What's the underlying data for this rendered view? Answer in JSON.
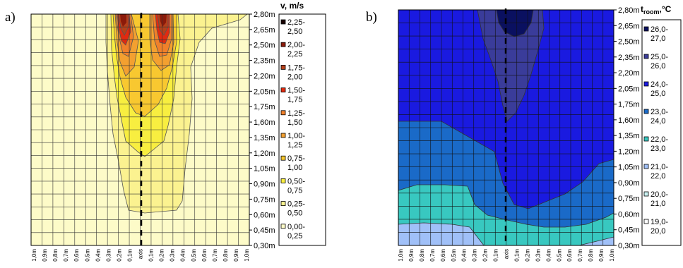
{
  "chart_data": [
    {
      "type": "contour",
      "panel_label": "a)",
      "legend_title": "v, m/s",
      "y_ticks": [
        "2,80m",
        "2,65m",
        "2,50m",
        "2,35m",
        "2,20m",
        "2,05m",
        "1,75m",
        "1,60m",
        "1,35m",
        "1,20m",
        "1,05m",
        "0,90m",
        "0,75m",
        "0,60m",
        "0,45m",
        "0,30m"
      ],
      "x_ticks": [
        "1,0m",
        "0,9m",
        "0,8m",
        "0,7m",
        "0,6m",
        "0,5m",
        "0,4m",
        "0,3m",
        "0,2m",
        "0,1m",
        "axis",
        "0,1m",
        "0,2m",
        "0,3m",
        "0,4m",
        "0,5m",
        "0,6m",
        "0,7m",
        "0,8m",
        "0,9m",
        "1,0m"
      ],
      "legend": [
        {
          "label1": "2,25-",
          "label2": "2,50",
          "color": "#1a0000"
        },
        {
          "label1": "2,00-",
          "label2": "2,25",
          "color": "#8b1a0a"
        },
        {
          "label1": "1,75-",
          "label2": "2,00",
          "color": "#b5401a"
        },
        {
          "label1": "1,50-",
          "label2": "1,75",
          "color": "#e02a10"
        },
        {
          "label1": "1,25-",
          "label2": "1,50",
          "color": "#f0802a"
        },
        {
          "label1": "1,00-",
          "label2": "1,25",
          "color": "#f3a030"
        },
        {
          "label1": "0,75-",
          "label2": "1,00",
          "color": "#f8c830"
        },
        {
          "label1": "0,50-",
          "label2": "0,75",
          "color": "#f8ee40"
        },
        {
          "label1": "0,25-",
          "label2": "0,50",
          "color": "#fbf290"
        },
        {
          "label1": "0,00-",
          "label2": "0,25",
          "color": "#fdfbc8"
        }
      ]
    },
    {
      "type": "contour",
      "panel_label": "b)",
      "legend_title_main": "t",
      "legend_title_sub": "room",
      "legend_title_unit": ",°C",
      "y_ticks": [
        "2,80m",
        "2,65m",
        "2,50m",
        "2,35m",
        "2,20m",
        "2,05m",
        "1,75m",
        "1,60m",
        "1,35m",
        "1,20m",
        "1,05m",
        "0,90m",
        "0,75m",
        "0,60m",
        "0,45m",
        "0,30m"
      ],
      "x_ticks": [
        "1,0m",
        "0,9m",
        "0,8m",
        "0,7m",
        "0,6m",
        "0,5m",
        "0,4m",
        "0,3m",
        "0,2m",
        "0,1m",
        "axis",
        "0,1m",
        "0,2m",
        "0,3m",
        "0,4m",
        "0,5m",
        "0,6m",
        "0,7m",
        "0,8m",
        "0,9m",
        "1,0m"
      ],
      "legend": [
        {
          "label1": "26,0-",
          "label2": "27,0",
          "color": "#0a1060"
        },
        {
          "label1": "25,0-",
          "label2": "26,0",
          "color": "#3a3c9a"
        },
        {
          "label1": "24,0-",
          "label2": "25,0",
          "color": "#1a1ae0"
        },
        {
          "label1": "23,0-",
          "label2": "24,0",
          "color": "#1a6ac8"
        },
        {
          "label1": "22,0-",
          "label2": "23,0",
          "color": "#38c8c0"
        },
        {
          "label1": "21,0-",
          "label2": "22,0",
          "color": "#a0c0f8"
        },
        {
          "label1": "20,0-",
          "label2": "21,0",
          "color": "#c8f0f0"
        },
        {
          "label1": "19,0-",
          "label2": "20,0",
          "color": "#ffffff"
        }
      ]
    }
  ]
}
